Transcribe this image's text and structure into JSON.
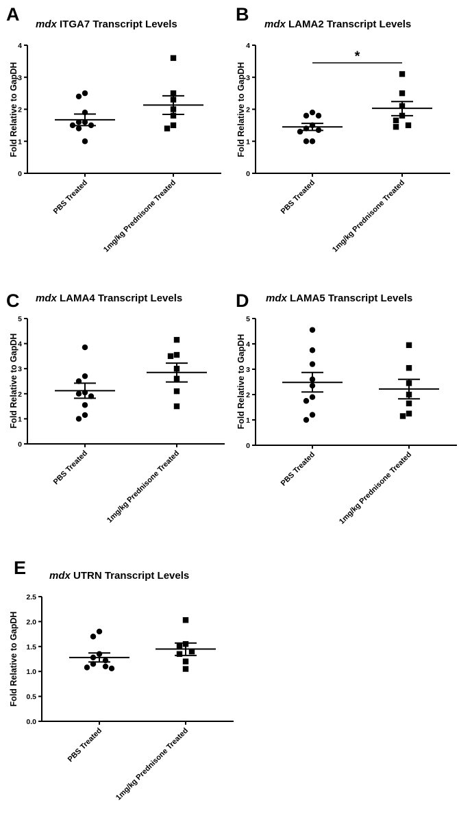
{
  "colors": {
    "ink": "#000000",
    "background": "#ffffff"
  },
  "chart_data": [
    {
      "type": "scatter",
      "panel_letter": "A",
      "title_italic": "mdx",
      "title_rest": " ITGA7 Transcript Levels",
      "ylabel": "Fold Relative to GapDH",
      "ylim": [
        0,
        4
      ],
      "yticks": [
        0,
        1,
        2,
        3,
        4
      ],
      "ytick_labels": [
        "0",
        "1",
        "2",
        "3",
        "4"
      ],
      "categories": [
        "PBS Treated",
        "1mg/kg Prednisone Treated"
      ],
      "series": [
        {
          "marker": "circle",
          "values": [
            2.5,
            2.4,
            1.9,
            1.6,
            1.6,
            1.5,
            1.5,
            1.4,
            1.0
          ],
          "mean": 1.67,
          "sem_low": 1.49,
          "sem_high": 1.85
        },
        {
          "marker": "square",
          "values": [
            3.6,
            2.5,
            2.3,
            2.0,
            1.8,
            1.5,
            1.4
          ],
          "mean": 2.13,
          "sem_low": 1.84,
          "sem_high": 2.42
        }
      ],
      "significance": null
    },
    {
      "type": "scatter",
      "panel_letter": "B",
      "title_italic": "mdx",
      "title_rest": " LAMA2 Transcript Levels",
      "ylabel": "Fold Relative to GapDH",
      "ylim": [
        0,
        4
      ],
      "yticks": [
        0,
        1,
        2,
        3,
        4
      ],
      "ytick_labels": [
        "0",
        "1",
        "2",
        "3",
        "4"
      ],
      "categories": [
        "PBS Treated",
        "1mg/kg Prednisone Treated"
      ],
      "series": [
        {
          "marker": "circle",
          "values": [
            1.9,
            1.8,
            1.8,
            1.5,
            1.4,
            1.35,
            1.3,
            1.0,
            1.0
          ],
          "mean": 1.45,
          "sem_low": 1.34,
          "sem_high": 1.56
        },
        {
          "marker": "square",
          "values": [
            3.1,
            2.5,
            2.1,
            1.8,
            1.65,
            1.5,
            1.45
          ],
          "mean": 2.03,
          "sem_low": 1.8,
          "sem_high": 2.24
        }
      ],
      "significance": {
        "label": "*",
        "y": 3.45
      }
    },
    {
      "type": "scatter",
      "panel_letter": "C",
      "title_italic": "mdx",
      "title_rest": " LAMA4 Transcript Levels",
      "ylabel": "Fold Relative to GapDH",
      "ylim": [
        0,
        5
      ],
      "yticks": [
        0,
        1,
        2,
        3,
        4,
        5
      ],
      "ytick_labels": [
        "0",
        "1",
        "2",
        "3",
        "4",
        "5"
      ],
      "categories": [
        "PBS Treated",
        "1mg/kg Prednisone Treated"
      ],
      "series": [
        {
          "marker": "circle",
          "values": [
            3.85,
            2.7,
            2.5,
            2.05,
            2.0,
            1.9,
            1.55,
            1.15,
            1.0
          ],
          "mean": 2.12,
          "sem_low": 1.82,
          "sem_high": 2.42
        },
        {
          "marker": "square",
          "values": [
            4.15,
            3.55,
            3.5,
            3.0,
            2.6,
            2.1,
            1.5
          ],
          "mean": 2.85,
          "sem_low": 2.47,
          "sem_high": 3.22
        }
      ],
      "significance": null
    },
    {
      "type": "scatter",
      "panel_letter": "D",
      "title_italic": "mdx",
      "title_rest": " LAMA5 Transcript Levels",
      "ylabel": "Fold Relative to GapDH",
      "ylim": [
        0,
        5
      ],
      "yticks": [
        0,
        1,
        2,
        3,
        4,
        5
      ],
      "ytick_labels": [
        "0",
        "1",
        "2",
        "3",
        "4",
        "5"
      ],
      "categories": [
        "PBS Treated",
        "1mg/kg Prednisone Treated"
      ],
      "series": [
        {
          "marker": "circle",
          "values": [
            4.55,
            3.75,
            3.2,
            2.6,
            2.35,
            1.9,
            1.75,
            1.2,
            1.0
          ],
          "mean": 2.48,
          "sem_low": 2.1,
          "sem_high": 2.87
        },
        {
          "marker": "square",
          "values": [
            3.95,
            3.05,
            2.45,
            2.0,
            1.65,
            1.25,
            1.15
          ],
          "mean": 2.22,
          "sem_low": 1.83,
          "sem_high": 2.6
        }
      ],
      "significance": null
    },
    {
      "type": "scatter",
      "panel_letter": "E",
      "title_italic": "mdx",
      "title_rest": " UTRN Transcript Levels",
      "ylabel": "Fold Relative to GapDH",
      "ylim": [
        0,
        2.5
      ],
      "yticks": [
        0,
        0.5,
        1,
        1.5,
        2,
        2.5
      ],
      "ytick_labels": [
        "0.0",
        "0.5",
        "1.0",
        "1.5",
        "2.0",
        "2.5"
      ],
      "categories": [
        "PBS Treated",
        "1mg/kg Prednisone Treated"
      ],
      "series": [
        {
          "marker": "circle",
          "values": [
            1.8,
            1.7,
            1.35,
            1.28,
            1.22,
            1.15,
            1.1,
            1.08,
            1.06
          ],
          "mean": 1.28,
          "sem_low": 1.19,
          "sem_high": 1.37
        },
        {
          "marker": "square",
          "values": [
            2.03,
            1.55,
            1.5,
            1.4,
            1.35,
            1.2,
            1.05
          ],
          "mean": 1.45,
          "sem_low": 1.32,
          "sem_high": 1.57
        }
      ],
      "significance": null
    }
  ]
}
